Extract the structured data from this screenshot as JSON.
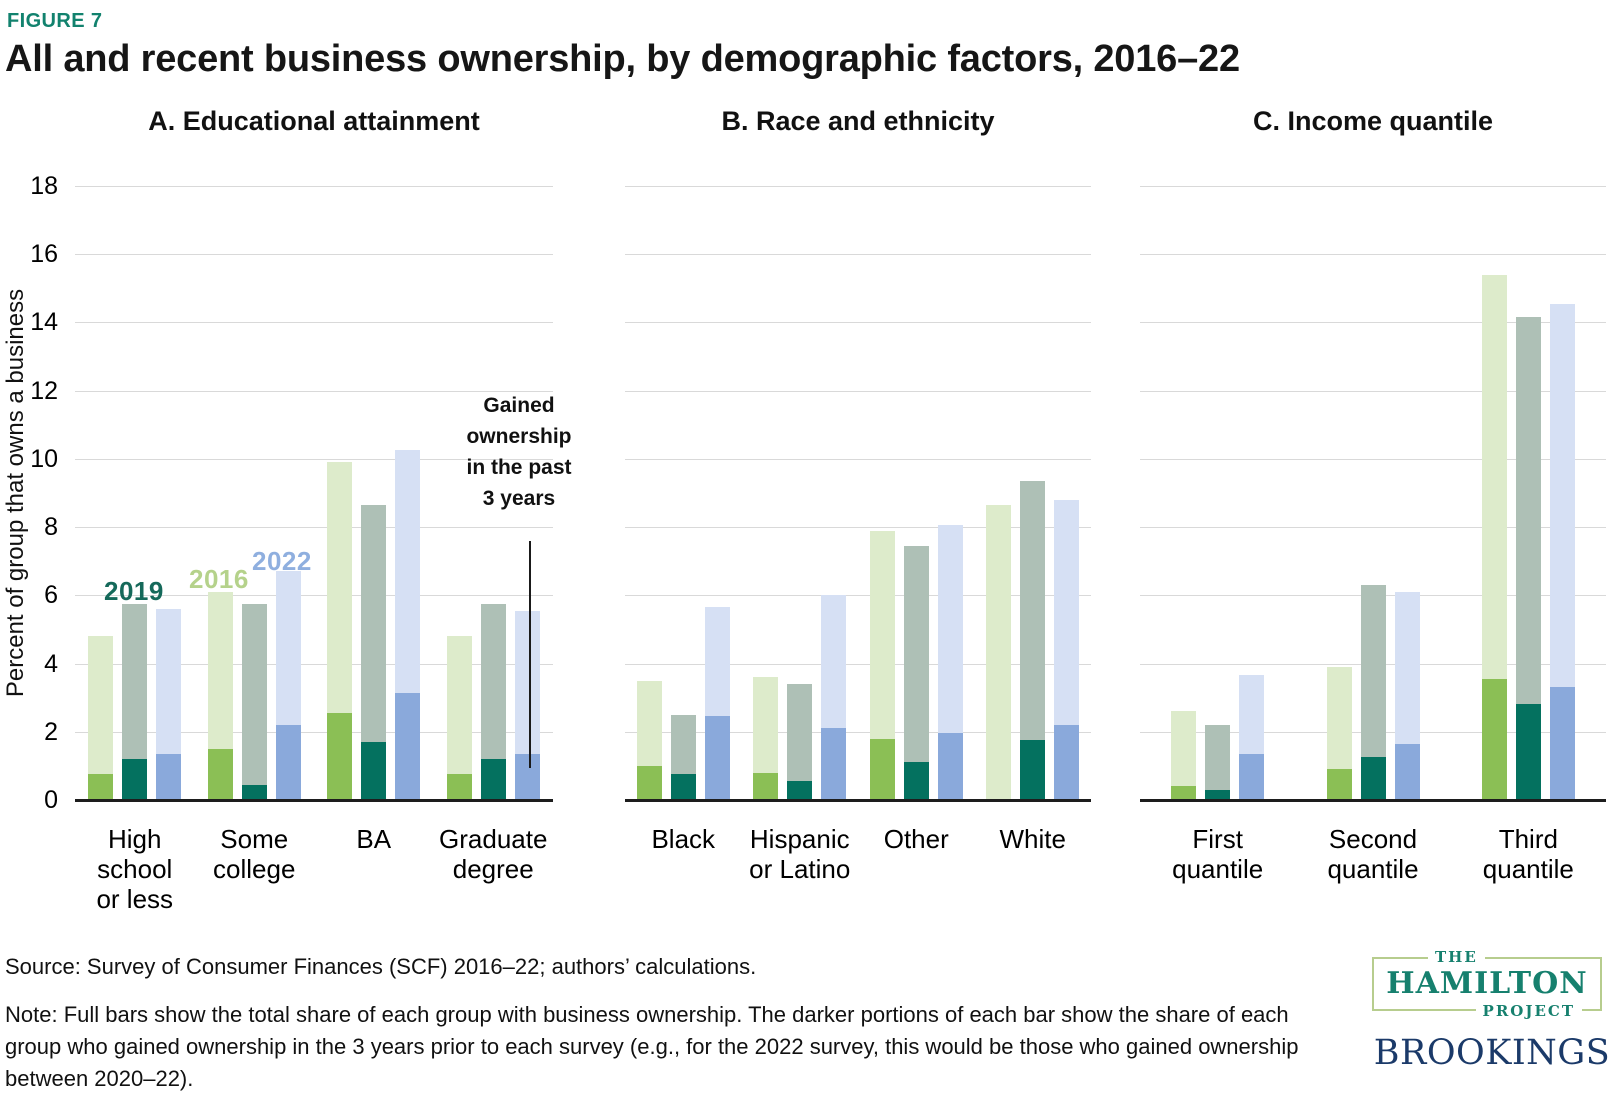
{
  "figure_label": "FIGURE 7",
  "title": "All and recent business ownership, by demographic factors, 2016–22",
  "y_axis": {
    "label": "Percent of group that owns a business",
    "ticks": [
      18,
      16,
      14,
      12,
      10,
      8,
      6,
      4,
      2,
      0
    ],
    "ylim": [
      0,
      18
    ]
  },
  "legend": {
    "position": "inside panel A, above first bar groups",
    "items": [
      {
        "label": "2019",
        "color": "#15695a"
      },
      {
        "label": "2016",
        "color": "#b5d28b"
      },
      {
        "label": "2022",
        "color": "#8fafdf"
      }
    ]
  },
  "annotation": {
    "text": "Gained\nownership\nin the past\n3 years",
    "points_to": "recent-ownership portion of the Graduate degree 2022 bar"
  },
  "colors": {
    "figure_label": "#12826e",
    "series": {
      "2016": {
        "total": "#ddebcb",
        "recent": "#8bbf55"
      },
      "2019": {
        "total": "#aec0b6",
        "recent": "#04715f"
      },
      "2022": {
        "total": "#d6e0f4",
        "recent": "#8aa9db"
      }
    },
    "gridline": "#d9d9d9",
    "baseline": "#1d1d1d"
  },
  "chart_data": [
    {
      "type": "bar",
      "panel_title": "A. Educational attainment",
      "ylabel": "Percent of group that owns a business",
      "ylim": [
        0,
        18
      ],
      "grid": true,
      "categories": [
        "High\nschool\nor less",
        "Some\ncollege",
        "BA",
        "Graduate\ndegree"
      ],
      "series": [
        {
          "name": "2016",
          "total": [
            4.8,
            6.1,
            9.9,
            4.8
          ],
          "recent_3yr": [
            0.75,
            1.5,
            2.55,
            0.75
          ]
        },
        {
          "name": "2019",
          "total": [
            5.75,
            5.75,
            8.65,
            5.75
          ],
          "recent_3yr": [
            1.2,
            0.45,
            1.7,
            1.2
          ]
        },
        {
          "name": "2022",
          "total": [
            5.6,
            6.7,
            10.25,
            5.55
          ],
          "recent_3yr": [
            1.35,
            2.2,
            3.15,
            1.35
          ]
        }
      ]
    },
    {
      "type": "bar",
      "panel_title": "B. Race and ethnicity",
      "ylabel": "Percent of group that owns a business",
      "ylim": [
        0,
        18
      ],
      "grid": true,
      "categories": [
        "Black",
        "Hispanic\nor Latino",
        "Other",
        "White"
      ],
      "series": [
        {
          "name": "2016",
          "total": [
            3.5,
            3.6,
            7.9,
            8.65
          ],
          "recent_3yr": [
            1.0,
            0.8,
            1.8,
            0
          ]
        },
        {
          "name": "2019",
          "total": [
            2.5,
            3.4,
            7.45,
            9.35
          ],
          "recent_3yr": [
            0.75,
            0.55,
            1.1,
            1.75
          ]
        },
        {
          "name": "2022",
          "total": [
            5.65,
            6.0,
            8.05,
            8.8
          ],
          "recent_3yr": [
            2.45,
            2.1,
            1.95,
            2.2
          ]
        }
      ]
    },
    {
      "type": "bar",
      "panel_title": "C. Income quantile",
      "ylabel": "Percent of group that owns a business",
      "ylim": [
        0,
        18
      ],
      "grid": true,
      "categories": [
        "First\nquantile",
        "Second\nquantile",
        "Third\nquantile"
      ],
      "series": [
        {
          "name": "2016",
          "total": [
            2.6,
            3.9,
            15.4
          ],
          "recent_3yr": [
            0.4,
            0.9,
            3.55
          ]
        },
        {
          "name": "2019",
          "total": [
            2.2,
            6.3,
            14.15
          ],
          "recent_3yr": [
            0.3,
            1.25,
            2.8
          ]
        },
        {
          "name": "2022",
          "total": [
            3.65,
            6.1,
            14.55
          ],
          "recent_3yr": [
            1.35,
            1.65,
            3.3
          ]
        }
      ]
    }
  ],
  "source": "Source: Survey of Consumer Finances (SCF) 2016–22; authors’ calculations.",
  "note": "Note: Full bars show the total share of each group with business ownership. The darker portions of each bar show the share of each group who gained ownership in the 3 years prior to each survey (e.g., for the 2022 survey, this would be those who gained ownership between 2020–22).",
  "logos": {
    "hamilton_the": "THE",
    "hamilton_main": "HAMILTON",
    "hamilton_project": "PROJECT",
    "brookings": "BROOKINGS"
  }
}
